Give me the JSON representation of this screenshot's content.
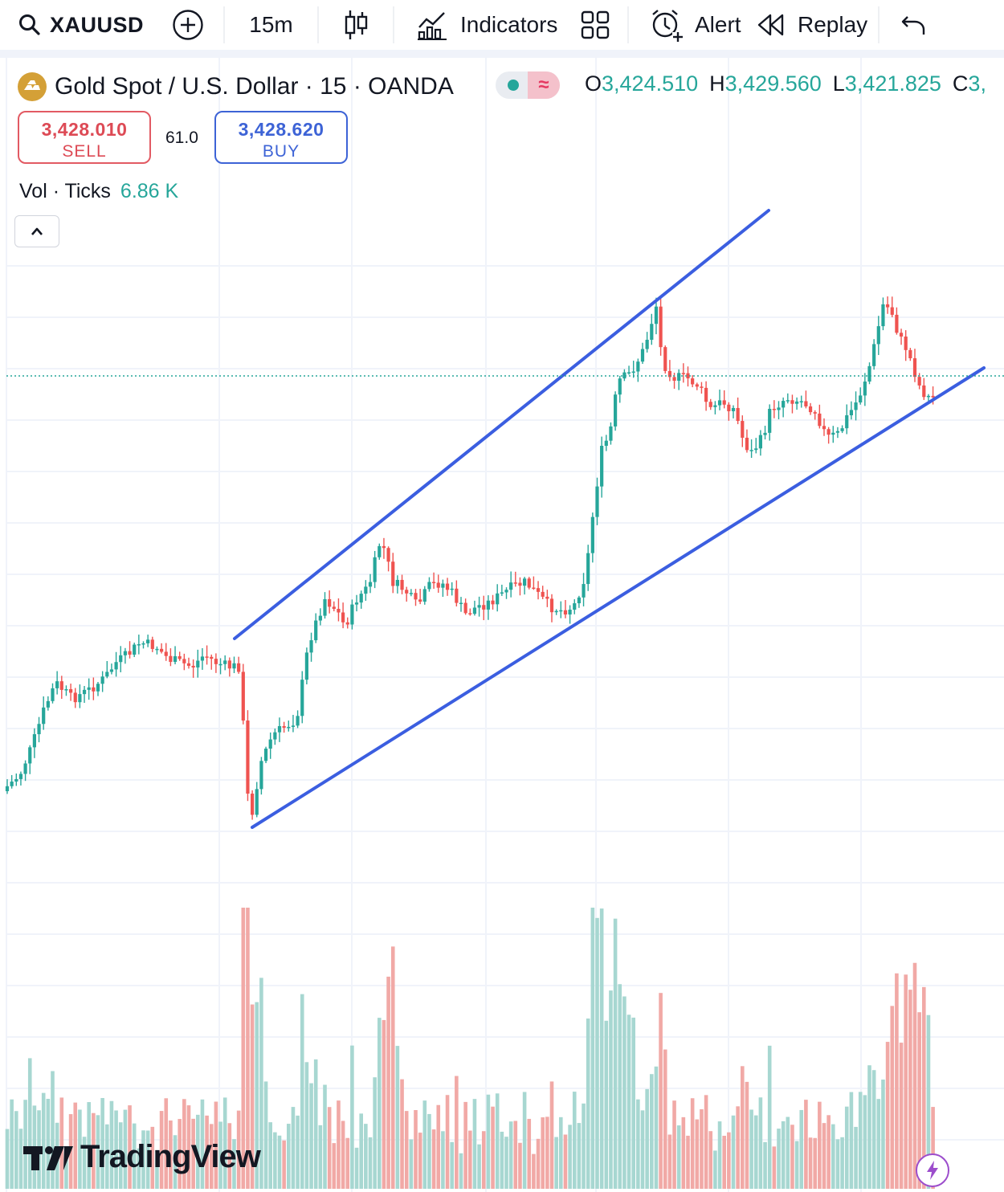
{
  "toolbar": {
    "symbol": "XAUUSD",
    "interval": "15m",
    "indicators_label": "Indicators",
    "alert_label": "Alert",
    "replay_label": "Replay"
  },
  "legend": {
    "title": "Gold Spot / U.S. Dollar · 15 · OANDA",
    "open_key": "O",
    "open": "3,424.510",
    "high_key": "H",
    "high": "3,429.560",
    "low_key": "L",
    "low": "3,421.825",
    "close_key": "C",
    "close": "3,"
  },
  "trade": {
    "sell_price": "3,428.010",
    "sell_label": "SELL",
    "spread": "61.0",
    "buy_price": "3,428.620",
    "buy_label": "BUY"
  },
  "volume": {
    "label": "Vol · Ticks",
    "value": "6.86 K"
  },
  "branding": {
    "name": "TradingView"
  },
  "colors": {
    "up": "#26a69a",
    "down": "#ef5350",
    "vol_up": "#a7d7d1",
    "vol_down": "#f1a9a6",
    "trendline": "#3b5ee0"
  },
  "chart_data": {
    "type": "candlestick",
    "price_line": "3,428.01",
    "trendlines": [
      {
        "name": "upper-channel"
      },
      {
        "name": "lower-channel"
      }
    ]
  }
}
